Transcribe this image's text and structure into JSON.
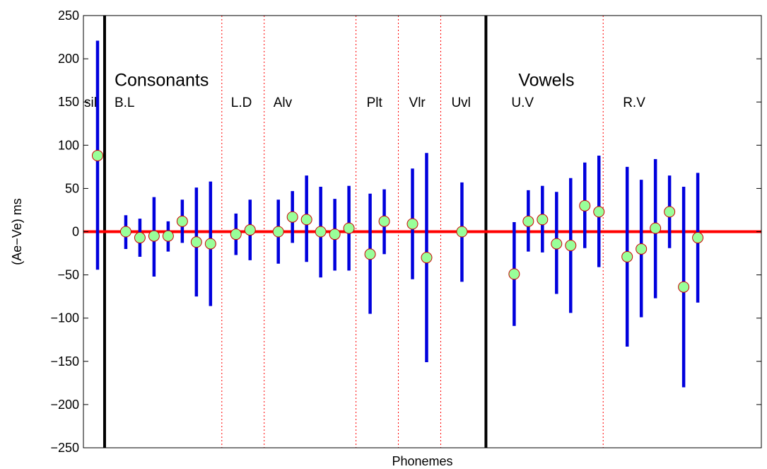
{
  "chart_data": {
    "type": "errorbar",
    "xlabel": "Phonemes",
    "ylabel": "(Ae−Ve) ms",
    "ylim": [
      -250,
      250
    ],
    "yticks": [
      -250,
      -200,
      -150,
      -100,
      -50,
      0,
      50,
      100,
      150,
      200,
      250
    ],
    "ytick_labels": [
      "−250",
      "−200",
      "−150",
      "−100",
      "−50",
      "0",
      "50",
      "100",
      "150",
      "200",
      "250"
    ],
    "xlim": [
      0,
      48
    ],
    "zero_line": {
      "y": 0,
      "color": "#ff0000"
    },
    "section_labels": [
      {
        "text": "Consonants",
        "x": 2.2,
        "y": 176
      },
      {
        "text": "Vowels",
        "x": 30.8,
        "y": 176
      }
    ],
    "group_labels": [
      {
        "text": "sil",
        "x": 0.05
      },
      {
        "text": "B.L",
        "x": 2.2
      },
      {
        "text": "L.D",
        "x": 10.45
      },
      {
        "text": "Alv",
        "x": 13.45
      },
      {
        "text": "Plt",
        "x": 20.05
      },
      {
        "text": "Vlr",
        "x": 23.05
      },
      {
        "text": "Uvl",
        "x": 26.05
      },
      {
        "text": "U.V",
        "x": 30.3
      },
      {
        "text": "R.V",
        "x": 38.2
      }
    ],
    "group_label_y": 150,
    "major_separators": [
      1.5,
      28.5
    ],
    "minor_separators": [
      9.8,
      12.8,
      19.3,
      22.3,
      25.3,
      36.8
    ],
    "points": [
      {
        "group": "sil",
        "x": 1,
        "mean": 88,
        "lower": -44,
        "upper": 221
      },
      {
        "group": "B.L",
        "x": 3,
        "mean": 0,
        "lower": -20,
        "upper": 19
      },
      {
        "group": "B.L",
        "x": 4,
        "mean": -7,
        "lower": -29,
        "upper": 15
      },
      {
        "group": "B.L",
        "x": 5,
        "mean": -5,
        "lower": -52,
        "upper": 40
      },
      {
        "group": "B.L",
        "x": 6,
        "mean": -5,
        "lower": -23,
        "upper": 12
      },
      {
        "group": "B.L",
        "x": 7,
        "mean": 12,
        "lower": -13,
        "upper": 37
      },
      {
        "group": "B.L",
        "x": 8,
        "mean": -12,
        "lower": -75,
        "upper": 51
      },
      {
        "group": "B.L",
        "x": 9,
        "mean": -14,
        "lower": -86,
        "upper": 58
      },
      {
        "group": "L.D",
        "x": 10.8,
        "mean": -3,
        "lower": -27,
        "upper": 21
      },
      {
        "group": "L.D",
        "x": 11.8,
        "mean": 2,
        "lower": -33,
        "upper": 37
      },
      {
        "group": "Alv",
        "x": 13.8,
        "mean": 0,
        "lower": -37,
        "upper": 37
      },
      {
        "group": "Alv",
        "x": 14.8,
        "mean": 17,
        "lower": -13,
        "upper": 47
      },
      {
        "group": "Alv",
        "x": 15.8,
        "mean": 14,
        "lower": -35,
        "upper": 65
      },
      {
        "group": "Alv",
        "x": 16.8,
        "mean": 0,
        "lower": -53,
        "upper": 52
      },
      {
        "group": "Alv",
        "x": 17.8,
        "mean": -3,
        "lower": -45,
        "upper": 38
      },
      {
        "group": "Alv",
        "x": 18.8,
        "mean": 4,
        "lower": -45,
        "upper": 53
      },
      {
        "group": "Plt",
        "x": 20.3,
        "mean": -26,
        "lower": -95,
        "upper": 44
      },
      {
        "group": "Plt",
        "x": 21.3,
        "mean": 12,
        "lower": -26,
        "upper": 49
      },
      {
        "group": "Vlr",
        "x": 23.3,
        "mean": 9,
        "lower": -55,
        "upper": 73
      },
      {
        "group": "Vlr",
        "x": 24.3,
        "mean": -30,
        "lower": -151,
        "upper": 91
      },
      {
        "group": "Uvl",
        "x": 26.8,
        "mean": 0,
        "lower": -58,
        "upper": 57
      },
      {
        "group": "U.V",
        "x": 30.5,
        "mean": -49,
        "lower": -109,
        "upper": 11
      },
      {
        "group": "U.V",
        "x": 31.5,
        "mean": 12,
        "lower": -23,
        "upper": 48
      },
      {
        "group": "U.V",
        "x": 32.5,
        "mean": 14,
        "lower": -24,
        "upper": 53
      },
      {
        "group": "U.V",
        "x": 33.5,
        "mean": -14,
        "lower": -72,
        "upper": 46
      },
      {
        "group": "U.V",
        "x": 34.5,
        "mean": -16,
        "lower": -94,
        "upper": 62
      },
      {
        "group": "U.V",
        "x": 35.5,
        "mean": 30,
        "lower": -19,
        "upper": 80
      },
      {
        "group": "U.V",
        "x": 36.5,
        "mean": 23,
        "lower": -41,
        "upper": 88
      },
      {
        "group": "R.V",
        "x": 38.5,
        "mean": -29,
        "lower": -133,
        "upper": 75
      },
      {
        "group": "R.V",
        "x": 39.5,
        "mean": -20,
        "lower": -99,
        "upper": 60
      },
      {
        "group": "R.V",
        "x": 40.5,
        "mean": 4,
        "lower": -77,
        "upper": 84
      },
      {
        "group": "R.V",
        "x": 41.5,
        "mean": 23,
        "lower": -19,
        "upper": 65
      },
      {
        "group": "R.V",
        "x": 42.5,
        "mean": -64,
        "lower": -180,
        "upper": 52
      },
      {
        "group": "R.V",
        "x": 43.5,
        "mean": -7,
        "lower": -82,
        "upper": 68
      }
    ],
    "colors": {
      "errorbar": "#0000dd",
      "marker_fill": "#99ff99",
      "marker_edge": "#cc0000",
      "zero_line": "#ff0000",
      "major_separator": "#000000",
      "minor_separator": "#ff0000"
    },
    "grid": false,
    "legend": "none"
  }
}
